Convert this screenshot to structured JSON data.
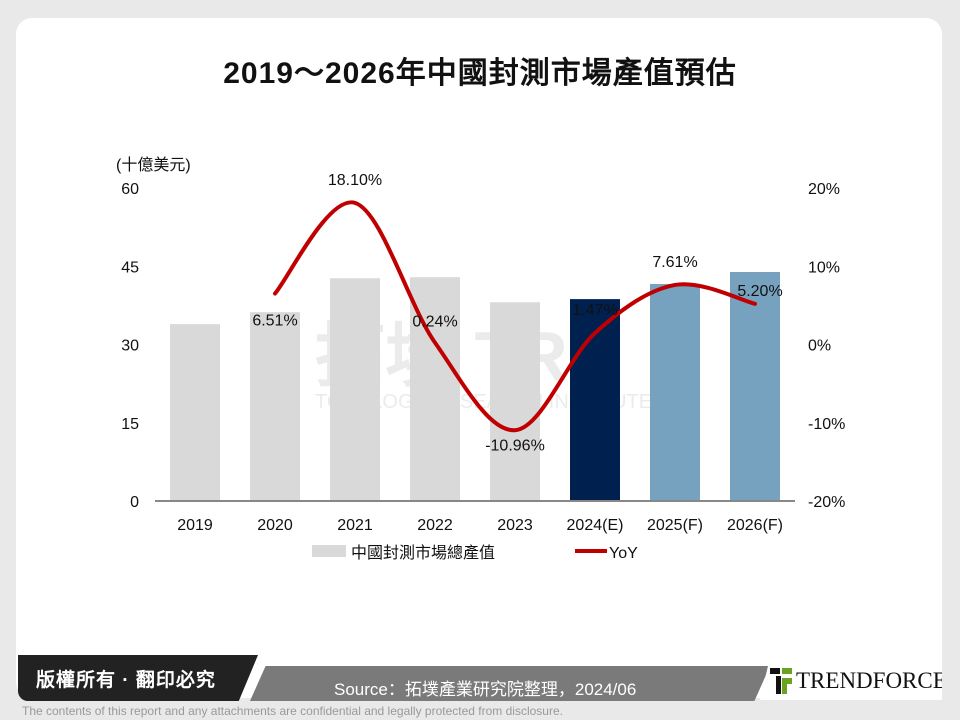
{
  "title": "2019～2026年中國封測市場產值預估",
  "chart_data": {
    "type": "bar+line",
    "title": "2019～2026年中國封測市場產值預估",
    "ylabel": "(十億美元)",
    "categories": [
      "2019",
      "2020",
      "2021",
      "2022",
      "2023",
      "2024(E)",
      "2025(F)",
      "2026(F)"
    ],
    "ylim": [
      0,
      60
    ],
    "yticks": [
      "0",
      "15",
      "30",
      "45",
      "60"
    ],
    "y2lim": [
      -20,
      20
    ],
    "y2ticks": [
      "-20%",
      "-10%",
      "0%",
      "10%",
      "20%"
    ],
    "series": [
      {
        "name": "中國封測市場總產值",
        "type": "bar",
        "values": [
          33.9,
          36.2,
          42.7,
          42.9,
          38.1,
          38.7,
          41.6,
          43.9
        ],
        "colors": [
          "#d9d9d9",
          "#d9d9d9",
          "#d9d9d9",
          "#d9d9d9",
          "#d9d9d9",
          "#002050",
          "#76a2bf",
          "#76a2bf"
        ]
      },
      {
        "name": "YoY",
        "type": "line",
        "axis": "right",
        "color": "#c00000",
        "values": [
          null,
          6.51,
          18.1,
          0.24,
          -10.96,
          1.47,
          7.61,
          5.2
        ],
        "labels": [
          "",
          "6.51%",
          "18.10%",
          "0.24%",
          "-10.96%",
          "1.47%",
          "7.61%",
          "5.20%"
        ]
      }
    ],
    "legend": "bottom",
    "grid": false
  },
  "watermark": "拓墣 TRI TOPOLOGY RESEARCH INSTITUTE",
  "footer": {
    "copyright": "版權所有 · 翻印必究",
    "source": "Source：拓墣產業研究院整理，2024/06",
    "logo": "TRENDFORCE",
    "disclaimer": "The contents of this report and any attachments are confidential and legally protected from disclosure."
  }
}
